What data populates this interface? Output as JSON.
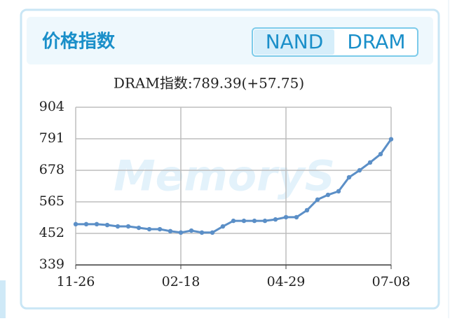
{
  "header": {
    "title": "价格指数",
    "tabs": [
      "NAND",
      "DRAM"
    ],
    "active_tab": 1
  },
  "watermark": "MemoryS",
  "chart_data": {
    "type": "line",
    "title": "DRAM指数:789.39(+57.75)",
    "categories": [
      "11-26",
      null,
      null,
      null,
      null,
      null,
      null,
      null,
      null,
      null,
      "02-18",
      null,
      null,
      null,
      null,
      null,
      null,
      null,
      null,
      null,
      "04-29",
      null,
      null,
      null,
      null,
      null,
      null,
      null,
      null,
      null,
      "07-08"
    ],
    "series": [
      {
        "name": "DRAM",
        "color": "#5b8fc7",
        "values": [
          485,
          485,
          485,
          482,
          477,
          477,
          472,
          467,
          467,
          460,
          455,
          462,
          455,
          455,
          477,
          497,
          497,
          497,
          497,
          502,
          510,
          510,
          535,
          573,
          590,
          603,
          653,
          678,
          706,
          736,
          789.39
        ]
      }
    ],
    "ylim": [
      339,
      904
    ],
    "yticks": [
      339,
      452,
      565,
      678,
      791,
      904
    ],
    "grid": true
  }
}
